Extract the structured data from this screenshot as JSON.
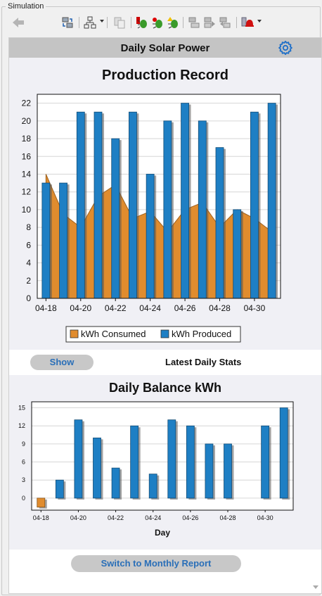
{
  "simulation": {
    "group_title": "Simulation",
    "toolbar": {
      "items": [
        {
          "name": "back-arrow-icon"
        },
        {
          "name": "swap-icon"
        },
        {
          "name": "network-icon"
        },
        {
          "name": "copy-icon"
        },
        {
          "name": "bug-red-icon"
        },
        {
          "name": "bug-green-icon"
        },
        {
          "name": "bug-yellow-icon"
        },
        {
          "name": "step-icon"
        },
        {
          "name": "step-forward-icon"
        },
        {
          "name": "step-back-icon"
        },
        {
          "name": "alarm-bell-icon"
        }
      ]
    }
  },
  "panel": {
    "title": "Daily Solar Power",
    "show_button": "Show",
    "latest_stats": "Latest Daily Stats",
    "monthly_button": "Switch to Monthly Report"
  },
  "colors": {
    "consumed": "#e08c2e",
    "produced": "#1e7fc4",
    "accent_blue": "#2a6fb8"
  },
  "chart_data": [
    {
      "type": "bar",
      "title": "Production Record",
      "categories": [
        "04-18",
        "04-19",
        "04-20",
        "04-21",
        "04-22",
        "04-23",
        "04-24",
        "04-25",
        "04-26",
        "04-27",
        "04-28",
        "04-29",
        "04-30",
        "05-01"
      ],
      "tick_labels": [
        "04-18",
        "04-20",
        "04-22",
        "04-24",
        "04-26",
        "04-28",
        "04-30"
      ],
      "series": [
        {
          "name": "kWh Consumed",
          "kind": "area",
          "values": [
            14,
            9.5,
            8,
            11.5,
            12.8,
            9,
            9.8,
            7.5,
            10,
            10.8,
            8,
            10,
            9,
            7.5
          ]
        },
        {
          "name": "kWh Produced",
          "kind": "bar",
          "values": [
            13,
            13,
            21,
            21,
            18,
            21,
            14,
            20,
            22,
            20,
            17,
            10,
            21,
            22
          ]
        }
      ],
      "ylim": [
        0,
        23
      ],
      "yticks": [
        0,
        2,
        4,
        6,
        8,
        10,
        12,
        14,
        16,
        18,
        20,
        22
      ],
      "grid": true,
      "legend": "bottom"
    },
    {
      "type": "bar",
      "title": "Daily Balance kWh",
      "xlabel": "Day",
      "categories": [
        "04-18",
        "04-19",
        "04-20",
        "04-21",
        "04-22",
        "04-23",
        "04-24",
        "04-25",
        "04-26",
        "04-27",
        "04-28",
        "04-29",
        "04-30",
        "05-01"
      ],
      "tick_labels": [
        "04-18",
        "04-20",
        "04-22",
        "04-24",
        "04-26",
        "04-28",
        "04-30"
      ],
      "values": [
        -1.5,
        3,
        13,
        10,
        5,
        12,
        4,
        13,
        12,
        9,
        9,
        0,
        12,
        15
      ],
      "ylim": [
        -2,
        16
      ],
      "yticks": [
        0,
        3,
        6,
        9,
        12,
        15
      ],
      "grid": true
    }
  ]
}
